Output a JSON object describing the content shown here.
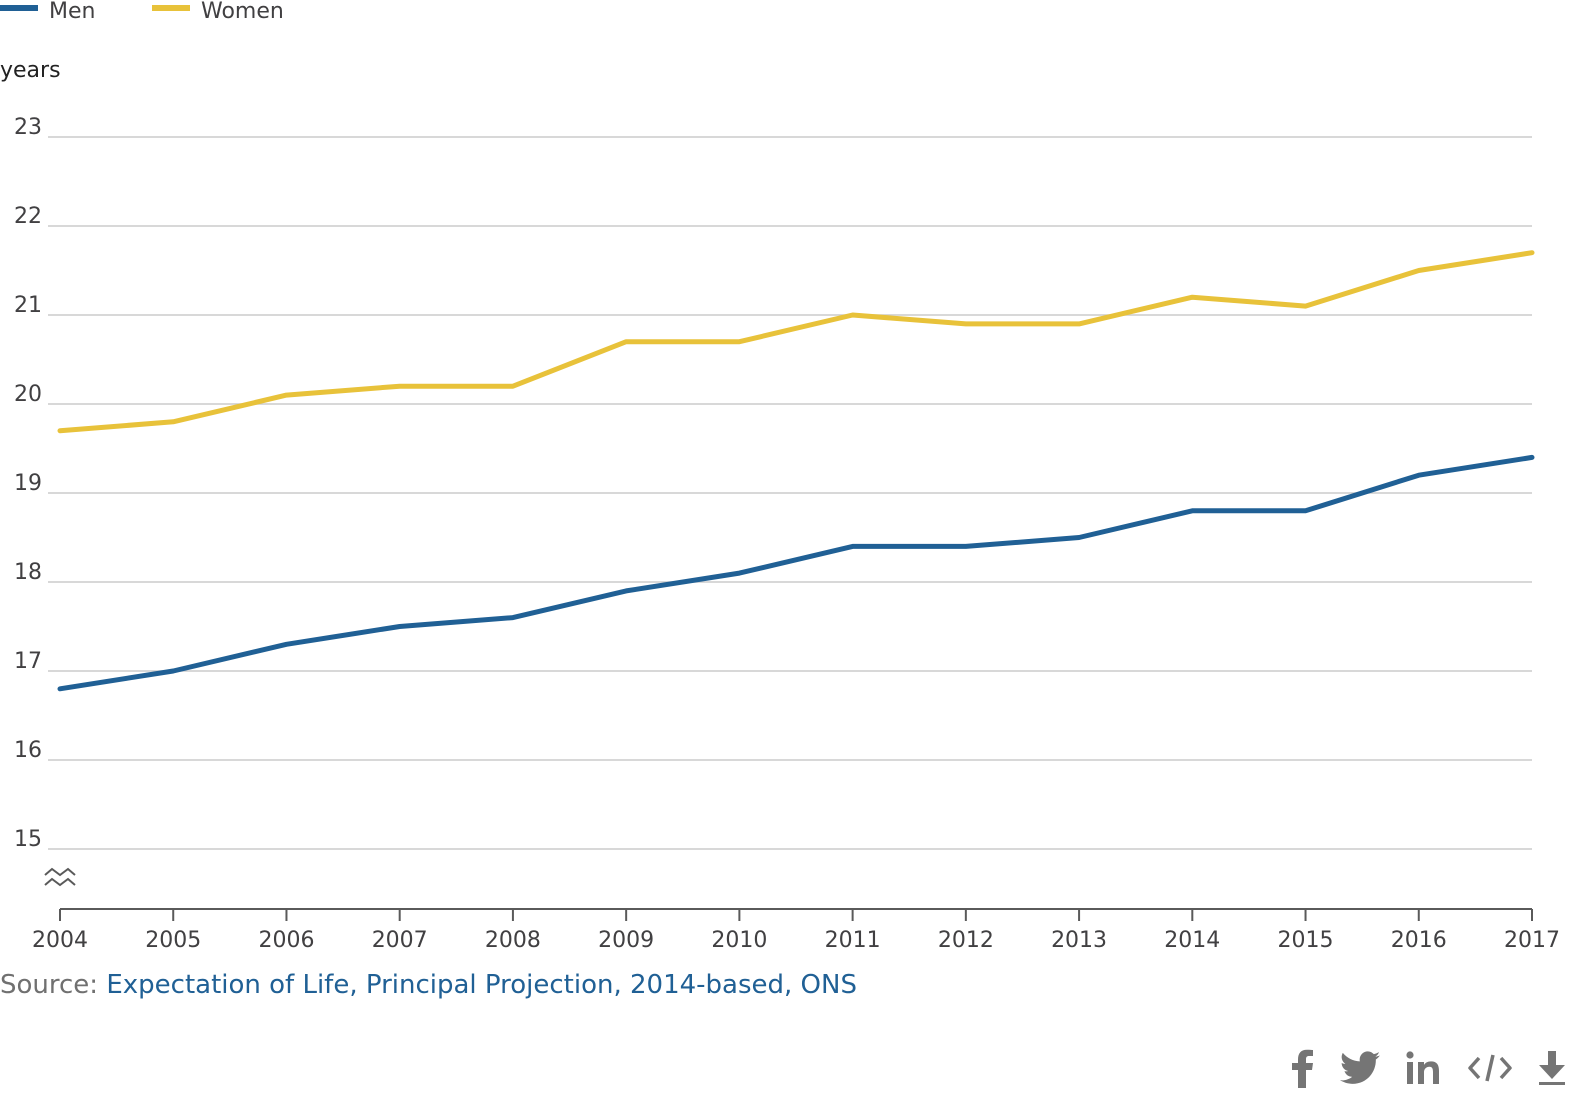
{
  "legend": {
    "items": [
      {
        "label": "Men",
        "color": "#206095"
      },
      {
        "label": "Women",
        "color": "#e8c23a"
      }
    ]
  },
  "source": {
    "prefix": "Source: ",
    "link_text": "Expectation of Life, Principal Projection, 2014-based, ONS"
  },
  "share": {
    "icons": [
      "facebook-icon",
      "twitter-icon",
      "linkedin-icon",
      "embed-code-icon",
      "download-icon"
    ]
  },
  "colors": {
    "grid": "#cccccc",
    "axis": "#5a5a5a",
    "icon": "#757575"
  },
  "chart_data": {
    "type": "line",
    "ylabel": "years",
    "xlabel": "",
    "ylim": [
      15,
      23
    ],
    "y_axis_break": true,
    "grid": true,
    "legend_position": "top-left",
    "y_ticks": [
      "15",
      "16",
      "17",
      "18",
      "19",
      "20",
      "21",
      "22",
      "23"
    ],
    "x": [
      "2004",
      "2005",
      "2006",
      "2007",
      "2008",
      "2009",
      "2010",
      "2011",
      "2012",
      "2013",
      "2014",
      "2015",
      "2016",
      "2017"
    ],
    "series": [
      {
        "name": "Men",
        "color": "#206095",
        "values": [
          16.8,
          17.0,
          17.3,
          17.5,
          17.6,
          17.9,
          18.1,
          18.4,
          18.4,
          18.5,
          18.8,
          18.8,
          19.2,
          19.4
        ]
      },
      {
        "name": "Women",
        "color": "#e8c23a",
        "values": [
          19.7,
          19.8,
          20.1,
          20.2,
          20.2,
          20.7,
          20.7,
          21.0,
          20.9,
          20.9,
          21.2,
          21.1,
          21.5,
          21.7
        ]
      }
    ]
  }
}
